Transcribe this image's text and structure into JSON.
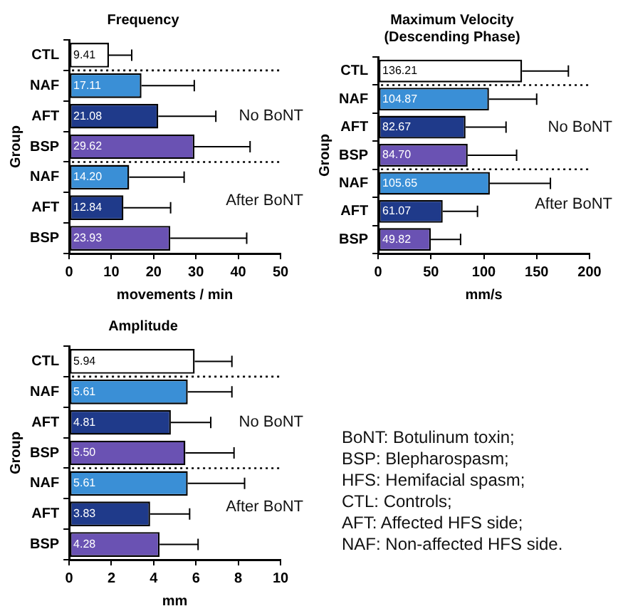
{
  "chart_data": [
    {
      "type": "bar",
      "orientation": "horizontal",
      "title": "Frequency",
      "xlabel": "movements / min",
      "ylabel": "Group",
      "categories": [
        "CTL",
        "NAF",
        "AFT",
        "BSP",
        "NAF",
        "AFT",
        "BSP"
      ],
      "values": [
        9.41,
        17.11,
        21.08,
        29.62,
        14.2,
        12.84,
        23.93
      ],
      "colors": [
        "#ffffff",
        "#3a8fd6",
        "#1f3a8a",
        "#6a52b3",
        "#3a8fd6",
        "#1f3a8a",
        "#6a52b3"
      ],
      "errors": [
        [
          9.41,
          14.8
        ],
        [
          17.11,
          29.6
        ],
        [
          21.08,
          34.7
        ],
        [
          29.62,
          42.8
        ],
        [
          14.2,
          27.2
        ],
        [
          12.84,
          24
        ],
        [
          23.93,
          42
        ]
      ],
      "value_labels": [
        "9.41",
        "17.11",
        "21.08",
        "29.62",
        "14.20",
        "12.84",
        "23.93"
      ],
      "xlim": [
        0,
        50
      ],
      "xticks": [
        0,
        10,
        20,
        30,
        40,
        50
      ],
      "grid": false,
      "legend": false,
      "annotations": [
        "No BoNT",
        "After BoNT"
      ]
    },
    {
      "type": "bar",
      "orientation": "horizontal",
      "title": "Maximum Velocity\n(Descending Phase)",
      "xlabel": "mm/s",
      "ylabel": "Group",
      "categories": [
        "CTL",
        "NAF",
        "AFT",
        "BSP",
        "NAF",
        "AFT",
        "BSP"
      ],
      "values": [
        136.21,
        104.87,
        82.67,
        84.7,
        105.65,
        61.07,
        49.82
      ],
      "colors": [
        "#ffffff",
        "#3a8fd6",
        "#1f3a8a",
        "#6a52b3",
        "#3a8fd6",
        "#1f3a8a",
        "#6a52b3"
      ],
      "errors": [
        [
          136.21,
          180
        ],
        [
          104.87,
          150
        ],
        [
          82.67,
          121
        ],
        [
          84.7,
          131
        ],
        [
          105.65,
          163
        ],
        [
          61.07,
          94
        ],
        [
          49.82,
          78
        ]
      ],
      "value_labels": [
        "136.21",
        "104.87",
        "82.67",
        "84.70",
        "105.65",
        "61.07",
        "49.82"
      ],
      "xlim": [
        0,
        200
      ],
      "xticks": [
        0,
        50,
        100,
        150,
        200
      ],
      "grid": false,
      "legend": false,
      "annotations": [
        "No BoNT",
        "After BoNT"
      ]
    },
    {
      "type": "bar",
      "orientation": "horizontal",
      "title": "Amplitude",
      "xlabel": "mm",
      "ylabel": "Group",
      "categories": [
        "CTL",
        "NAF",
        "AFT",
        "BSP",
        "NAF",
        "AFT",
        "BSP"
      ],
      "values": [
        5.94,
        5.61,
        4.81,
        5.5,
        5.61,
        3.83,
        4.28
      ],
      "colors": [
        "#ffffff",
        "#3a8fd6",
        "#1f3a8a",
        "#6a52b3",
        "#3a8fd6",
        "#1f3a8a",
        "#6a52b3"
      ],
      "errors": [
        [
          5.94,
          7.7
        ],
        [
          5.61,
          7.7
        ],
        [
          4.81,
          6.7
        ],
        [
          5.5,
          7.8
        ],
        [
          5.61,
          8.3
        ],
        [
          3.83,
          5.7
        ],
        [
          4.28,
          6.1
        ]
      ],
      "value_labels": [
        "5.94",
        "5.61",
        "4.81",
        "5.50",
        "5.61",
        "3.83",
        "4.28"
      ],
      "xlim": [
        0,
        10
      ],
      "xticks": [
        0,
        2,
        4,
        6,
        8,
        10
      ],
      "grid": false,
      "legend": false,
      "annotations": [
        "No BoNT",
        "After BoNT"
      ]
    },
    {
      "type": "other",
      "annotations": [
        "BoNT: Botulinum toxin;",
        "BSP: Blepharospasm;",
        "HFS: Hemifacial spasm;",
        "CTL: Controls;",
        "AFT: Affected HFS side;",
        "NAF: Non-affected HFS side."
      ]
    }
  ]
}
